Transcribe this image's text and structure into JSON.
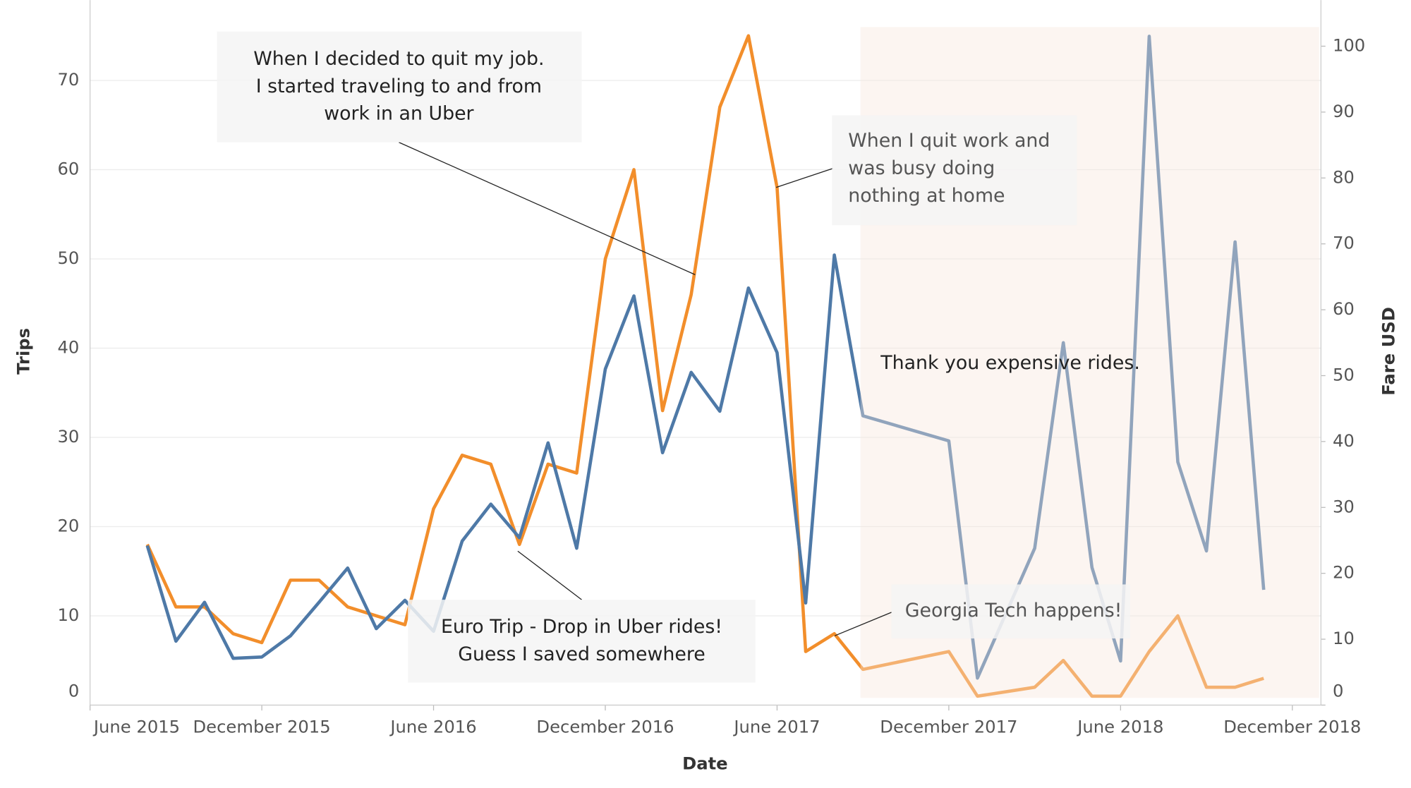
{
  "chart_data": {
    "type": "line",
    "xlabel": "Date",
    "ylabel": "Trips",
    "y2label": "Fare USD",
    "x": [
      "2015-08",
      "2015-09",
      "2015-10",
      "2015-11",
      "2015-12",
      "2016-01",
      "2016-02",
      "2016-03",
      "2016-04",
      "2016-05",
      "2016-06",
      "2016-07",
      "2016-08",
      "2016-09",
      "2016-10",
      "2016-11",
      "2016-12",
      "2017-01",
      "2017-02",
      "2017-03",
      "2017-04",
      "2017-05",
      "2017-06",
      "2017-07",
      "2017-08",
      "2017-09",
      "2017-12",
      "2018-01",
      "2018-03",
      "2018-04",
      "2018-05",
      "2018-06",
      "2018-07",
      "2018-08",
      "2018-09",
      "2018-10",
      "2018-11"
    ],
    "series": [
      {
        "color": "#f28e2b",
        "axis": "y",
        "values": [
          18,
          11,
          11,
          8,
          7,
          14,
          14,
          11,
          10,
          9,
          22,
          28,
          27,
          18,
          27,
          26,
          50,
          60,
          33,
          46,
          67,
          75,
          58,
          6,
          8,
          4,
          6,
          1,
          2,
          5,
          1,
          1,
          6,
          10,
          2,
          2,
          3
        ]
      },
      {
        "color": "#4e79a7",
        "axis": "y2",
        "values": [
          24.2,
          9.7,
          15.6,
          7.1,
          7.3,
          10.5,
          15.6,
          20.8,
          11.6,
          15.9,
          11.2,
          24.9,
          30.5,
          25.4,
          39.8,
          23.8,
          51,
          62.1,
          38.3,
          50.5,
          44.6,
          63.3,
          53.5,
          15.5,
          68.3,
          43.9,
          40.1,
          4.1,
          23.8,
          55,
          20.9,
          6.7,
          101.5,
          36.9,
          23.4,
          70.3,
          17.5
        ]
      }
    ],
    "xlim": [
      "2015-06",
      "2019-01"
    ],
    "xticks": [
      {
        "value": "2015-06",
        "label": "June 2015"
      },
      {
        "value": "2015-12",
        "label": "December 2015"
      },
      {
        "value": "2016-06",
        "label": "June 2016"
      },
      {
        "value": "2016-12",
        "label": "December 2016"
      },
      {
        "value": "2017-06",
        "label": "June 2017"
      },
      {
        "value": "2017-12",
        "label": "December 2017"
      },
      {
        "value": "2018-06",
        "label": "June 2018"
      },
      {
        "value": "2018-12",
        "label": "December 2018"
      }
    ],
    "ylim": [
      0,
      79
    ],
    "yticks": [
      0,
      10,
      20,
      30,
      40,
      50,
      60,
      70
    ],
    "y2lim": [
      0,
      107
    ],
    "y2ticks": [
      0,
      10,
      20,
      30,
      40,
      50,
      60,
      70,
      80,
      90,
      100
    ],
    "grid": true,
    "highlight_from": "2017-08",
    "annotations": [
      {
        "lines": [
          "When I decided to quit my job.",
          "I started traveling to and from",
          "work in an Uber"
        ],
        "point": "2017-03"
      },
      {
        "lines": [
          "When I quit work and",
          "was busy doing",
          "nothing at home"
        ],
        "point": "2017-06"
      },
      {
        "lines": [
          "Euro Trip - Drop in Uber rides!",
          "Guess I saved somewhere"
        ],
        "point": "2016-09"
      },
      {
        "lines": [
          "Georgia Tech happens!"
        ],
        "point": "2017-09"
      },
      {
        "lines": [
          "Thank you expensive rides."
        ]
      }
    ]
  }
}
